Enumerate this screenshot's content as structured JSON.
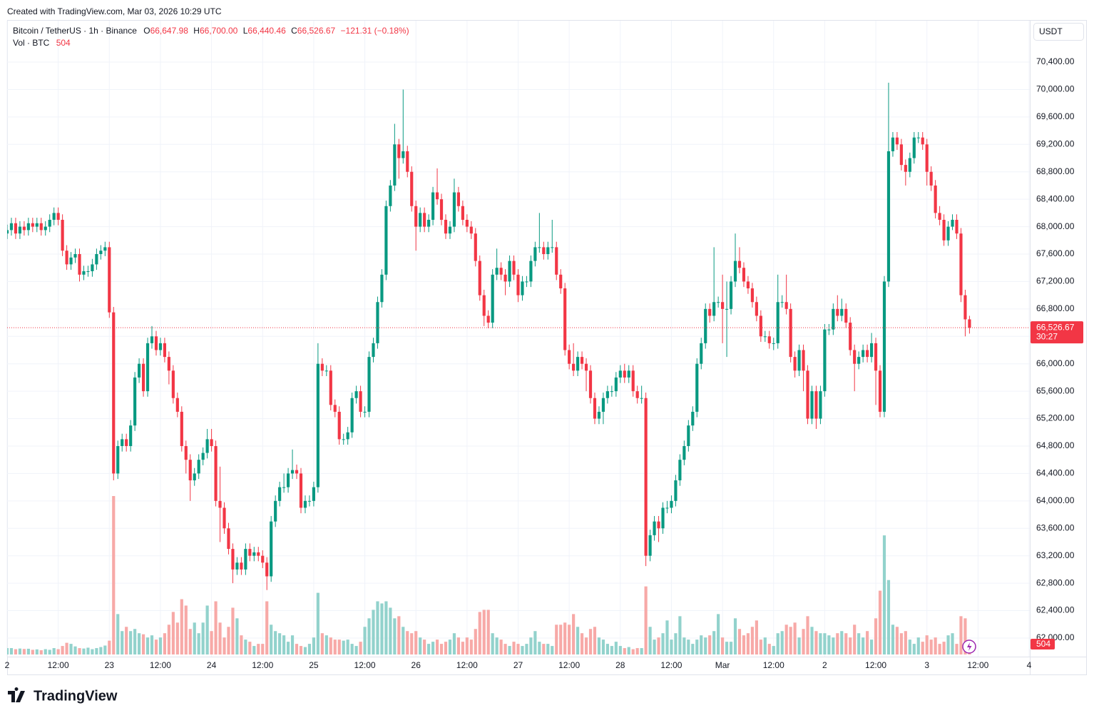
{
  "header": {
    "created": "Created with TradingView.com, Mar 03, 2026 10:29 UTC"
  },
  "chart_data": {
    "type": "candlestick",
    "symbol": "Bitcoin / TetherUS · 1h · Binance",
    "legend": {
      "o_key": "O",
      "o": "66,647.98",
      "h_key": "H",
      "h": "66,700.00",
      "l_key": "L",
      "l": "66,440.46",
      "c_key": "C",
      "c": "66,526.67",
      "change": "−121.31 (−0.18%)",
      "vol_name": "Vol · BTC",
      "vol": "504"
    },
    "currency": "USDT",
    "open": [
      67900,
      67950,
      68050,
      67900,
      68000,
      67950,
      68050,
      68000,
      68050,
      67950,
      68000,
      68100,
      68200,
      68100,
      67650,
      67450,
      67550,
      67600,
      67300,
      67350,
      67350,
      67450,
      67600,
      67650,
      67700,
      66750,
      64400,
      64800,
      64900,
      64800,
      65100,
      65800,
      66000,
      65600,
      66300,
      66400,
      66200,
      66300,
      66100,
      65900,
      65500,
      65300,
      64800,
      64600,
      64300,
      64400,
      64600,
      64700,
      64900,
      64800,
      64000,
      63900,
      63600,
      63300,
      63000,
      63100,
      63000,
      63300,
      63200,
      63250,
      63200,
      63100,
      62900,
      63700,
      64000,
      64200,
      64200,
      64400,
      64450,
      64400,
      63900,
      64000,
      64000,
      64200,
      66000,
      65900,
      65900,
      65400,
      65300,
      64900,
      64900,
      65000,
      65500,
      65600,
      65300,
      65300,
      66100,
      66300,
      66900,
      67300,
      68300,
      68600,
      69200,
      69000,
      69100,
      68800,
      68300,
      68000,
      68200,
      68000,
      68100,
      68500,
      68400,
      68100,
      67900,
      68000,
      68500,
      68300,
      68100,
      68000,
      67900,
      67500,
      67000,
      66700,
      66600,
      67300,
      67400,
      67300,
      67200,
      67500,
      67300,
      67000,
      67200,
      67200,
      67500,
      67700,
      67700,
      67600,
      67700,
      67700,
      67300,
      67100,
      66200,
      66000,
      65900,
      66100,
      66000,
      65900,
      65500,
      65200,
      65300,
      65500,
      65600,
      65600,
      65800,
      65900,
      65800,
      65900,
      65600,
      65500,
      65500,
      63200,
      63500,
      63700,
      63600,
      63900,
      63900,
      64000,
      64300,
      64600,
      64800,
      65100,
      65300,
      66000,
      66300,
      66800,
      66700,
      66900,
      66900,
      66800,
      66800,
      67200,
      67500,
      67400,
      67200,
      67100,
      66900,
      66700,
      66400,
      66400,
      66300,
      66300,
      66900,
      66900,
      66800,
      66100,
      65900,
      66200,
      65900,
      65200,
      65600,
      65200,
      65600,
      66500,
      66500,
      66800,
      66700,
      66800,
      66600,
      66200,
      66000,
      66100,
      66200,
      66100,
      66300,
      65900,
      65300,
      67200,
      69100,
      69300,
      69200,
      68900,
      68800,
      69000,
      69300,
      69300,
      69200,
      68800,
      68600,
      68200,
      68100,
      67800,
      68000,
      68100,
      67900,
      67000,
      66647.98
    ],
    "high": [
      68030,
      68130,
      68130,
      68080,
      68080,
      68130,
      68130,
      68130,
      68130,
      68080,
      68180,
      68280,
      68280,
      68180,
      67730,
      67630,
      67680,
      67680,
      67430,
      67430,
      67530,
      67680,
      67730,
      67780,
      67780,
      66830,
      64880,
      64980,
      64980,
      65180,
      65880,
      66080,
      66080,
      66380,
      66550,
      66480,
      66380,
      66380,
      66180,
      65980,
      65580,
      65380,
      64880,
      64680,
      64480,
      64680,
      64780,
      65050,
      65050,
      64880,
      64500,
      63980,
      63680,
      63380,
      63180,
      63180,
      63380,
      63380,
      63330,
      63330,
      63280,
      63180,
      63780,
      64080,
      64280,
      64400,
      64480,
      64750,
      64530,
      64480,
      64080,
      64080,
      64280,
      66300,
      66080,
      65980,
      65980,
      65480,
      65380,
      64980,
      65080,
      65580,
      65680,
      65680,
      65380,
      66180,
      66380,
      66980,
      67380,
      68380,
      68680,
      69500,
      69280,
      70000,
      69180,
      68880,
      68380,
      68280,
      68280,
      68180,
      68580,
      68850,
      68480,
      68180,
      68080,
      68700,
      68580,
      68380,
      68180,
      68080,
      67980,
      67580,
      67080,
      66780,
      67380,
      67680,
      67480,
      67380,
      67580,
      67580,
      67380,
      67280,
      67280,
      67580,
      67780,
      68200,
      67780,
      67780,
      68100,
      67780,
      67380,
      67180,
      66280,
      66300,
      66180,
      66180,
      66080,
      65980,
      65580,
      65380,
      65580,
      65680,
      65680,
      65880,
      65980,
      66000,
      65980,
      65980,
      65680,
      65680,
      65580,
      63580,
      63780,
      63780,
      63980,
      64000,
      64080,
      64380,
      64680,
      64880,
      65180,
      65380,
      66080,
      66380,
      66880,
      66880,
      67700,
      66980,
      67300,
      67200,
      67280,
      67900,
      67700,
      67480,
      67280,
      67180,
      66980,
      66780,
      66480,
      66480,
      66380,
      67300,
      67000,
      67300,
      66880,
      66180,
      66280,
      66280,
      65980,
      65680,
      65680,
      65680,
      66580,
      66580,
      66880,
      67000,
      66950,
      66880,
      66680,
      66280,
      66180,
      66280,
      66280,
      66450,
      66380,
      65980,
      67280,
      70100,
      69380,
      69380,
      69280,
      68980,
      69080,
      69380,
      69380,
      69380,
      69280,
      68880,
      68680,
      68300,
      68180,
      68080,
      68180,
      68180,
      67980,
      67080,
      66700
    ],
    "low": [
      67820,
      67870,
      67820,
      67820,
      67870,
      67870,
      67920,
      67920,
      67870,
      67870,
      67920,
      68020,
      68020,
      67570,
      67370,
      67370,
      67470,
      67200,
      67220,
      67270,
      67270,
      67370,
      67520,
      67570,
      66670,
      64300,
      64320,
      64720,
      64720,
      64720,
      65020,
      65720,
      65520,
      65520,
      66220,
      66120,
      66120,
      66020,
      65700,
      65420,
      65220,
      64720,
      64400,
      64000,
      64220,
      64320,
      64520,
      64620,
      64720,
      63920,
      63400,
      63520,
      63220,
      62800,
      62920,
      62920,
      62920,
      63120,
      63120,
      63120,
      63020,
      62700,
      62820,
      63620,
      63920,
      64120,
      64120,
      64320,
      64320,
      63820,
      63820,
      63920,
      63920,
      64120,
      65820,
      65820,
      65320,
      65220,
      64820,
      64820,
      64820,
      64920,
      65420,
      65220,
      65220,
      65220,
      66020,
      66220,
      66820,
      67220,
      68220,
      68520,
      68700,
      68920,
      68720,
      68220,
      67650,
      67920,
      67920,
      67920,
      68020,
      68320,
      68020,
      67820,
      67820,
      67920,
      68220,
      68020,
      67920,
      67820,
      67420,
      66920,
      66550,
      66520,
      66520,
      67220,
      67220,
      67000,
      67120,
      67220,
      66900,
      66920,
      67120,
      67120,
      67420,
      67620,
      67520,
      67520,
      67620,
      67220,
      67020,
      66120,
      65920,
      65820,
      65820,
      65920,
      65600,
      65420,
      65120,
      65120,
      65120,
      65420,
      65520,
      65520,
      65720,
      65720,
      65720,
      65520,
      65420,
      65420,
      63050,
      63120,
      63420,
      63400,
      63520,
      63820,
      63820,
      63920,
      64220,
      64520,
      64720,
      65020,
      65220,
      65920,
      66220,
      66600,
      66620,
      66820,
      66300,
      66100,
      66720,
      67120,
      67320,
      67120,
      67020,
      66820,
      66620,
      66320,
      66320,
      66220,
      66200,
      66220,
      66820,
      66720,
      66020,
      65800,
      65820,
      65600,
      65120,
      65120,
      65050,
      65120,
      65520,
      66420,
      66420,
      66620,
      66620,
      66520,
      66120,
      65600,
      65920,
      66020,
      66020,
      66020,
      65400,
      65220,
      65220,
      67120,
      69020,
      69120,
      68820,
      68600,
      68720,
      68920,
      69220,
      69120,
      68600,
      68520,
      68120,
      68020,
      67720,
      67720,
      67950,
      67820,
      66900,
      66400,
      66440.46
    ],
    "close": [
      67950,
      68050,
      67900,
      68000,
      67950,
      68050,
      68000,
      68050,
      67950,
      68000,
      68100,
      68200,
      68100,
      67650,
      67450,
      67550,
      67600,
      67300,
      67350,
      67350,
      67450,
      67600,
      67650,
      67700,
      66750,
      64400,
      64800,
      64900,
      64800,
      65100,
      65800,
      66000,
      65600,
      66300,
      66400,
      66200,
      66300,
      66100,
      65900,
      65500,
      65300,
      64800,
      64600,
      64300,
      64400,
      64600,
      64700,
      64900,
      64800,
      64000,
      63900,
      63600,
      63300,
      63000,
      63100,
      63000,
      63300,
      63200,
      63250,
      63200,
      63100,
      62900,
      63700,
      64000,
      64200,
      64200,
      64400,
      64450,
      64400,
      63900,
      64000,
      64000,
      64200,
      66000,
      65900,
      65900,
      65400,
      65300,
      64900,
      64900,
      65000,
      65500,
      65600,
      65300,
      65300,
      66100,
      66300,
      66900,
      67300,
      68300,
      68600,
      69200,
      69000,
      69100,
      68800,
      68300,
      68000,
      68200,
      68000,
      68100,
      68500,
      68400,
      68100,
      67900,
      68000,
      68500,
      68300,
      68100,
      68000,
      67900,
      67500,
      67000,
      66700,
      66600,
      67300,
      67400,
      67300,
      67200,
      67500,
      67300,
      67000,
      67200,
      67200,
      67500,
      67700,
      67700,
      67600,
      67700,
      67700,
      67300,
      67100,
      66200,
      66000,
      65900,
      66100,
      66000,
      65900,
      65500,
      65200,
      65300,
      65500,
      65600,
      65600,
      65800,
      65900,
      65800,
      65900,
      65600,
      65500,
      65500,
      63200,
      63500,
      63700,
      63600,
      63900,
      63900,
      64000,
      64300,
      64600,
      64800,
      65100,
      65300,
      66000,
      66300,
      66800,
      66700,
      66900,
      66900,
      66800,
      66800,
      67200,
      67500,
      67400,
      67200,
      67100,
      66900,
      66700,
      66400,
      66400,
      66300,
      66300,
      66900,
      66900,
      66800,
      66100,
      65900,
      66200,
      65900,
      65200,
      65600,
      65200,
      65600,
      66500,
      66500,
      66800,
      66700,
      66800,
      66600,
      66200,
      66000,
      66100,
      66200,
      66100,
      66300,
      65900,
      65300,
      67200,
      69100,
      69300,
      69200,
      68900,
      68800,
      69000,
      69300,
      69300,
      69200,
      68800,
      68600,
      68200,
      68100,
      67800,
      68000,
      68100,
      67900,
      67000,
      66647.98,
      66526.67
    ],
    "volume": [
      300,
      300,
      250,
      280,
      260,
      270,
      220,
      240,
      200,
      250,
      220,
      300,
      250,
      400,
      550,
      500,
      380,
      300,
      280,
      320,
      250,
      300,
      350,
      420,
      650,
      7450,
      1900,
      1100,
      1300,
      1100,
      1200,
      1000,
      950,
      800,
      900,
      700,
      800,
      1000,
      1400,
      2000,
      1500,
      2600,
      2300,
      1200,
      1500,
      1000,
      1500,
      2300,
      1100,
      2500,
      1500,
      800,
      1300,
      2200,
      1700,
      900,
      700,
      600,
      400,
      500,
      500,
      2500,
      1400,
      1100,
      1000,
      900,
      600,
      900,
      500,
      400,
      350,
      500,
      800,
      2900,
      1000,
      900,
      800,
      700,
      700,
      650,
      700,
      500,
      400,
      600,
      1300,
      1700,
      2100,
      2500,
      2400,
      2500,
      2200,
      1700,
      1800,
      1300,
      1100,
      1000,
      1100,
      800,
      700,
      500,
      600,
      700,
      500,
      600,
      700,
      1000,
      800,
      600,
      800,
      700,
      1200,
      2000,
      2100,
      2100,
      1000,
      800,
      700,
      500,
      400,
      600,
      500,
      400,
      500,
      800,
      1100,
      600,
      500,
      500,
      400,
      1400,
      1400,
      1500,
      1400,
      1900,
      1300,
      1000,
      800,
      1200,
      1300,
      800,
      700,
      500,
      400,
      600,
      400,
      300,
      350,
      250,
      300,
      300,
      3200,
      1300,
      700,
      800,
      1000,
      1600,
      700,
      1000,
      1800,
      800,
      700,
      500,
      700,
      900,
      800,
      900,
      1100,
      1900,
      800,
      600,
      600,
      1700,
      1200,
      900,
      1000,
      1300,
      1600,
      700,
      800,
      500,
      400,
      1000,
      1100,
      1400,
      1300,
      1500,
      800,
      1200,
      1800,
      1300,
      1100,
      1000,
      1000,
      900,
      800,
      1000,
      1100,
      1000,
      800,
      1400,
      1000,
      800,
      1100,
      700,
      1700,
      3000,
      5600,
      3500,
      1400,
      1300,
      1000,
      1100,
      700,
      500,
      800,
      600,
      900,
      700,
      800,
      500,
      600,
      900,
      1000,
      500,
      1800,
      1700,
      504
    ],
    "colors": {
      "up": "#089981",
      "down": "#f23645",
      "volume_up": "#92d2cc",
      "volume_down": "#f7a9a7"
    },
    "xlim": [
      0,
      240
    ],
    "ylim": [
      61729,
      71004
    ],
    "xticks": [
      {
        "value": 0,
        "label": "2"
      },
      {
        "value": 12,
        "label": "12:00"
      },
      {
        "value": 24,
        "label": "23"
      },
      {
        "value": 36,
        "label": "12:00"
      },
      {
        "value": 48,
        "label": "24"
      },
      {
        "value": 60,
        "label": "12:00"
      },
      {
        "value": 72,
        "label": "25"
      },
      {
        "value": 84,
        "label": "12:00"
      },
      {
        "value": 96,
        "label": "26"
      },
      {
        "value": 108,
        "label": "12:00"
      },
      {
        "value": 120,
        "label": "27"
      },
      {
        "value": 132,
        "label": "12:00"
      },
      {
        "value": 144,
        "label": "28"
      },
      {
        "value": 156,
        "label": "12:00"
      },
      {
        "value": 168,
        "label": "Mar"
      },
      {
        "value": 180,
        "label": "12:00"
      },
      {
        "value": 192,
        "label": "2"
      },
      {
        "value": 204,
        "label": "12:00"
      },
      {
        "value": 216,
        "label": "3"
      },
      {
        "value": 228,
        "label": "12:00"
      },
      {
        "value": 240,
        "label": "4"
      }
    ],
    "yticks": [
      {
        "value": 62000,
        "label": "62,000.00"
      },
      {
        "value": 62400,
        "label": "62,400.00"
      },
      {
        "value": 62800,
        "label": "62,800.00"
      },
      {
        "value": 63200,
        "label": "63,200.00"
      },
      {
        "value": 63600,
        "label": "63,600.00"
      },
      {
        "value": 64000,
        "label": "64,000.00"
      },
      {
        "value": 64400,
        "label": "64,400.00"
      },
      {
        "value": 64800,
        "label": "64,800.00"
      },
      {
        "value": 65200,
        "label": "65,200.00"
      },
      {
        "value": 65600,
        "label": "65,600.00"
      },
      {
        "value": 66000,
        "label": "66,000.00"
      },
      {
        "value": 66400,
        "label": "66,400.00"
      },
      {
        "value": 66800,
        "label": "66,800.00"
      },
      {
        "value": 67200,
        "label": "67,200.00"
      },
      {
        "value": 67600,
        "label": "67,600.00"
      },
      {
        "value": 68000,
        "label": "68,000.00"
      },
      {
        "value": 68400,
        "label": "68,400.00"
      },
      {
        "value": 68800,
        "label": "68,800.00"
      },
      {
        "value": 69200,
        "label": "69,200.00"
      },
      {
        "value": 69600,
        "label": "69,600.00"
      },
      {
        "value": 70000,
        "label": "70,000.00"
      },
      {
        "value": 70400,
        "label": "70,400.00"
      }
    ],
    "last_price_label": "66,526.67",
    "countdown": "30:27",
    "volume_label": "504",
    "grid": true
  },
  "footer": {
    "logo": "TradingView"
  }
}
